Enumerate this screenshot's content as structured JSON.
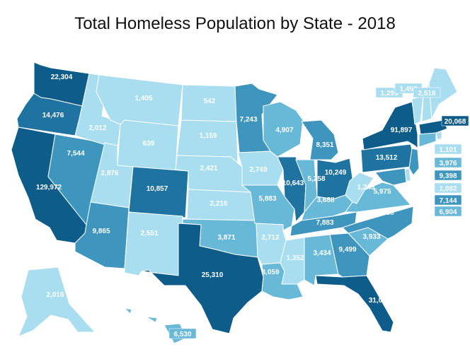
{
  "title": "Total Homeless Population by State - 2018",
  "colors": {
    "c1": "#a8def0",
    "c2": "#68b8d8",
    "c3": "#3e96bf",
    "c4": "#1f73a0",
    "c5": "#0d5c8a",
    "label_dark": "#ffffff",
    "label_light": "#ffffff"
  },
  "chart_data": {
    "type": "choropleth",
    "states": [
      {
        "state": "WA",
        "value": "22,304"
      },
      {
        "state": "OR",
        "value": "14,476"
      },
      {
        "state": "CA",
        "value": "129,972"
      },
      {
        "state": "NV",
        "value": "7,544"
      },
      {
        "state": "ID",
        "value": "2,012"
      },
      {
        "state": "MT",
        "value": "1,405"
      },
      {
        "state": "WY",
        "value": "639"
      },
      {
        "state": "UT",
        "value": "2,876"
      },
      {
        "state": "AZ",
        "value": "9,865"
      },
      {
        "state": "CO",
        "value": "10,857"
      },
      {
        "state": "NM",
        "value": "2,551"
      },
      {
        "state": "ND",
        "value": "542"
      },
      {
        "state": "SD",
        "value": "1,159"
      },
      {
        "state": "NE",
        "value": "2,421"
      },
      {
        "state": "KS",
        "value": "2,216"
      },
      {
        "state": "OK",
        "value": "3,871"
      },
      {
        "state": "TX",
        "value": "25,310"
      },
      {
        "state": "MN",
        "value": "7,243"
      },
      {
        "state": "IA",
        "value": "2,749"
      },
      {
        "state": "MO",
        "value": "5,883"
      },
      {
        "state": "AR",
        "value": "2,712"
      },
      {
        "state": "LA",
        "value": "3,059"
      },
      {
        "state": "WI",
        "value": "4,907"
      },
      {
        "state": "IL",
        "value": "10,643"
      },
      {
        "state": "MI",
        "value": "8,351"
      },
      {
        "state": "IN",
        "value": "5,258"
      },
      {
        "state": "OH",
        "value": "10,249"
      },
      {
        "state": "KY",
        "value": "3,688"
      },
      {
        "state": "TN",
        "value": "7,883"
      },
      {
        "state": "MS",
        "value": "1,352"
      },
      {
        "state": "AL",
        "value": "3,434"
      },
      {
        "state": "GA",
        "value": "9,499"
      },
      {
        "state": "FL",
        "value": "31,030"
      },
      {
        "state": "SC",
        "value": "3,933"
      },
      {
        "state": "NC",
        "value": "9,268"
      },
      {
        "state": "VA",
        "value": "5,975"
      },
      {
        "state": "WV",
        "value": "1,243"
      },
      {
        "state": "PA",
        "value": "13,512"
      },
      {
        "state": "NY",
        "value": "91,897"
      },
      {
        "state": "VT",
        "value": "1,291"
      },
      {
        "state": "NH",
        "value": "1,450"
      },
      {
        "state": "ME",
        "value": "2,516"
      },
      {
        "state": "MA",
        "value": "20,068"
      },
      {
        "state": "RI",
        "value": "1,101"
      },
      {
        "state": "CT",
        "value": "3,976"
      },
      {
        "state": "NJ",
        "value": "9,398"
      },
      {
        "state": "DE",
        "value": "1,082"
      },
      {
        "state": "MD",
        "value": "7,144"
      },
      {
        "state": "DC",
        "value": "6,904"
      },
      {
        "state": "AK",
        "value": "2,016"
      },
      {
        "state": "HI",
        "value": "6,530"
      }
    ]
  }
}
